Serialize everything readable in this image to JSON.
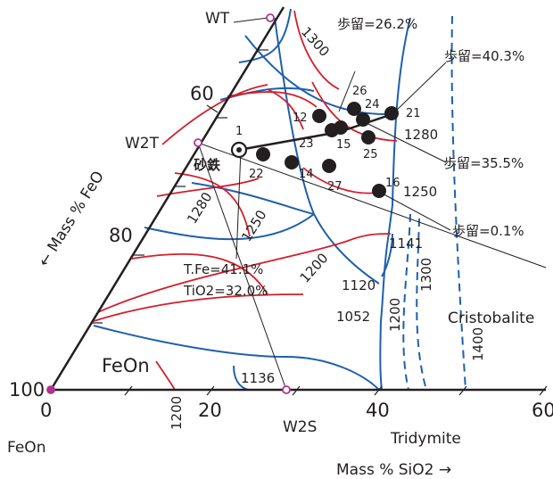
{
  "diagram": {
    "colors": {
      "axis": "#231f20",
      "boundary": "#1f5fae",
      "isotherm": "#d21f2b",
      "dashed": "#1f5fae",
      "point_marker": "#b0338f",
      "sample": "#231f20"
    },
    "corner_labels": {
      "feon_corner": "FeOn",
      "t100": "100",
      "t0": "0",
      "t20": "20",
      "t40": "40",
      "t60": "60",
      "t60_left": "60",
      "t80_left": "80"
    },
    "axis_titles": {
      "bottom": "Mass %   SiO2   →",
      "left": "←   Mass %   FeO"
    },
    "compounds": {
      "wt": "WT",
      "w2t": "W2T",
      "w2s": "W2S",
      "feon_field": "FeOn",
      "cristobalite": "Cristobalite",
      "tridymite": "Tridymite"
    },
    "isotherms": {
      "t1300": "1300",
      "t1280a": "1280",
      "t1280b": "1280",
      "t1250a": "1250",
      "t1250b": "1250",
      "t1200a": "1200",
      "t1200b": "1200",
      "t1200c": "1200",
      "t1141": "1141",
      "t1120": "1120",
      "t1300b": "1300",
      "t1052": "1052",
      "t1400": "1400",
      "t1136": "1136"
    },
    "yields": {
      "y262": "歩留=26.2%",
      "y403": "歩留=40.3%",
      "y355": "歩留=35.5%",
      "y01": "歩留=0.1%"
    },
    "sand_iron": {
      "label": "砂鉄",
      "tfe": "T.Fe=41.1%",
      "tio2": "TiO2=32.0%"
    },
    "points": [
      "1",
      "12",
      "14",
      "15",
      "16",
      "21",
      "22",
      "23",
      "24",
      "25",
      "26",
      "27"
    ]
  }
}
